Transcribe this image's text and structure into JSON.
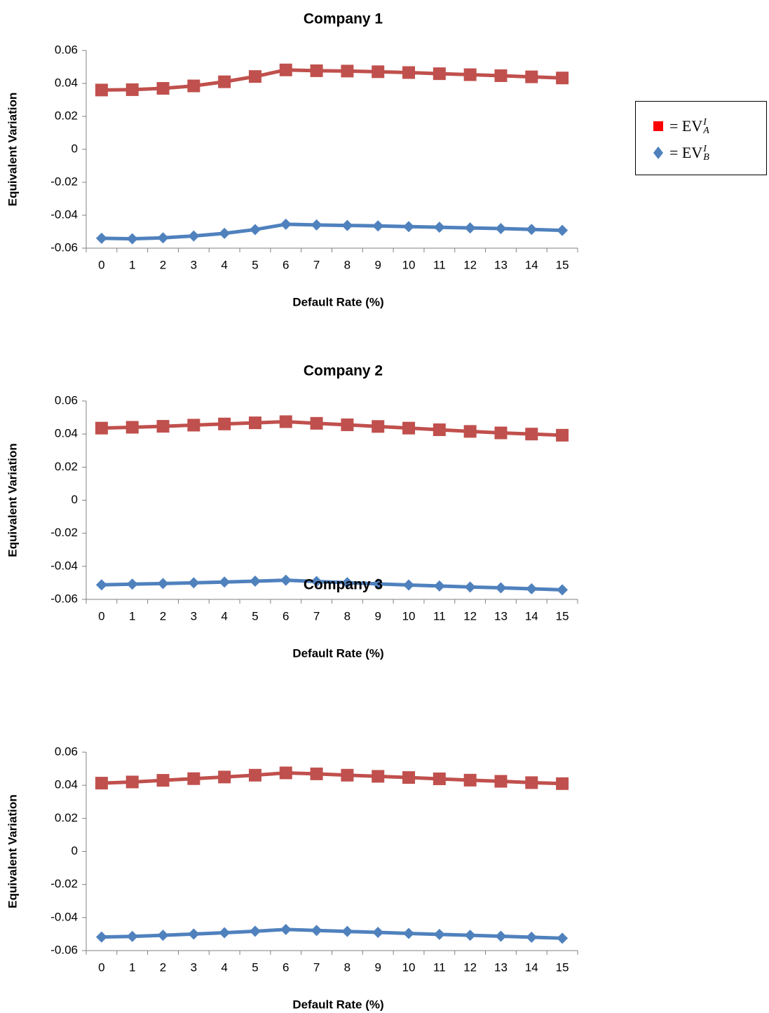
{
  "chart_data": [
    {
      "type": "line",
      "title": "Company 1",
      "xlabel": "Default Rate (%)",
      "ylabel": "Equivalent Variation",
      "ylim": [
        -0.06,
        0.06
      ],
      "yticks": [
        "0.06",
        "0.04",
        "0.02",
        "0",
        "-0.02",
        "-0.04",
        "-0.06"
      ],
      "categories": [
        "0",
        "1",
        "2",
        "3",
        "4",
        "5",
        "6",
        "7",
        "8",
        "9",
        "10",
        "11",
        "12",
        "13",
        "14",
        "15"
      ],
      "series": [
        {
          "values": [
            0.036,
            0.0362,
            0.037,
            0.0385,
            0.041,
            0.0442,
            0.0482,
            0.0477,
            0.0475,
            0.0471,
            0.0466,
            0.0459,
            0.0453,
            0.0447,
            0.044,
            0.0433
          ]
        },
        {
          "values": [
            -0.054,
            -0.0543,
            -0.0537,
            -0.0526,
            -0.051,
            -0.0487,
            -0.0455,
            -0.0459,
            -0.0462,
            -0.0465,
            -0.0469,
            -0.0473,
            -0.0477,
            -0.0481,
            -0.0486,
            -0.0492
          ]
        }
      ]
    },
    {
      "type": "line",
      "title": "Company 2",
      "xlabel": "Default Rate (%)",
      "ylabel": "Equivalent Variation",
      "ylim": [
        -0.06,
        0.06
      ],
      "yticks": [
        "0.06",
        "0.04",
        "0.02",
        "0",
        "-0.02",
        "-0.04",
        "-0.06"
      ],
      "categories": [
        "0",
        "1",
        "2",
        "3",
        "4",
        "5",
        "6",
        "7",
        "8",
        "9",
        "10",
        "11",
        "12",
        "13",
        "14",
        "15"
      ],
      "series": [
        {
          "values": [
            0.0436,
            0.0441,
            0.0447,
            0.0454,
            0.0461,
            0.0468,
            0.0475,
            0.0465,
            0.0456,
            0.0446,
            0.0436,
            0.0426,
            0.0416,
            0.0407,
            0.04,
            0.0393
          ]
        },
        {
          "values": [
            -0.0512,
            -0.0508,
            -0.0504,
            -0.05,
            -0.0495,
            -0.049,
            -0.0484,
            -0.0492,
            -0.0499,
            -0.0506,
            -0.0513,
            -0.0519,
            -0.0525,
            -0.053,
            -0.0536,
            -0.0542
          ]
        }
      ]
    },
    {
      "type": "line",
      "title": "Company 3",
      "xlabel": "Default Rate (%)",
      "ylabel": "Equivalent Variation",
      "ylim": [
        -0.06,
        0.06
      ],
      "yticks": [
        "0.06",
        "0.04",
        "0.02",
        "0",
        "-0.02",
        "-0.04",
        "-0.06"
      ],
      "categories": [
        "0",
        "1",
        "2",
        "3",
        "4",
        "5",
        "6",
        "7",
        "8",
        "9",
        "10",
        "11",
        "12",
        "13",
        "14",
        "15"
      ],
      "series": [
        {
          "values": [
            0.0413,
            0.042,
            0.043,
            0.044,
            0.045,
            0.0461,
            0.0475,
            0.0469,
            0.0461,
            0.0454,
            0.0447,
            0.0439,
            0.0431,
            0.0424,
            0.0416,
            0.041
          ]
        },
        {
          "values": [
            -0.0518,
            -0.0514,
            -0.0507,
            -0.05,
            -0.0492,
            -0.0483,
            -0.0472,
            -0.0478,
            -0.0484,
            -0.049,
            -0.0496,
            -0.0502,
            -0.0507,
            -0.0513,
            -0.0519,
            -0.0525
          ]
        }
      ]
    }
  ],
  "legend": {
    "entries": [
      {
        "marker": "square",
        "color": "#ff0000",
        "base": "= EV",
        "sub": "A",
        "sup": "I"
      },
      {
        "marker": "diamond",
        "color": "#4f81bd",
        "base": "= EV",
        "sub": "B",
        "sup": "I"
      }
    ]
  },
  "colors": {
    "series_a_line": "#c0504d",
    "series_b_line": "#4f81bd"
  }
}
